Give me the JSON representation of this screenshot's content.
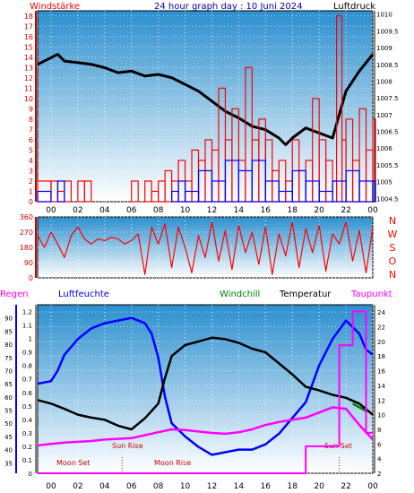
{
  "chart_data": [
    {
      "type": "line",
      "title": "24 hour graph day : 10 Juni 2024",
      "left_label": "Windstärke",
      "right_label": "Luftdruck",
      "left_ticks": [
        "0",
        "1",
        "2",
        "3",
        "4",
        "5",
        "6",
        "7",
        "8",
        "9",
        "10",
        "11",
        "12",
        "13",
        "14",
        "15",
        "16",
        "17",
        "18"
      ],
      "right_ticks": [
        "1004.5",
        "1005",
        "1005.5",
        "1006",
        "1006.5",
        "1007",
        "1007.5",
        "1008",
        "1008.5",
        "1009",
        "1009.5",
        "1010"
      ],
      "x_ticks": [
        "00",
        "02",
        "04",
        "06",
        "08",
        "10",
        "12",
        "14",
        "16",
        "18",
        "20",
        "22",
        "00"
      ],
      "ylim_left": [
        0,
        18.5
      ],
      "ylim_right": [
        1004.4,
        1010.1
      ],
      "series": [
        {
          "name": "Luftdruck",
          "axis": "right",
          "color": "#000000",
          "x": [
            -1,
            0,
            0.5,
            1,
            2,
            3,
            4,
            5,
            6,
            7,
            8,
            9,
            10,
            11,
            12,
            13,
            14,
            15,
            16,
            17,
            17.5,
            18,
            19,
            20,
            21,
            21.5,
            22,
            23,
            24
          ],
          "y": [
            1008.5,
            1008.7,
            1008.8,
            1008.6,
            1008.55,
            1008.5,
            1008.4,
            1008.25,
            1008.3,
            1008.15,
            1008.2,
            1008.1,
            1007.9,
            1007.7,
            1007.4,
            1007.1,
            1006.9,
            1006.65,
            1006.55,
            1006.3,
            1006.1,
            1006.3,
            1006.6,
            1006.45,
            1006.3,
            1007.0,
            1007.7,
            1008.3,
            1008.8
          ]
        },
        {
          "name": "Windstärke",
          "axis": "left",
          "color": "#ff0000",
          "x": [
            -1,
            0,
            0.5,
            1,
            1.5,
            2,
            2.5,
            3,
            4,
            5,
            6,
            6.5,
            7,
            7.5,
            8,
            8.5,
            9,
            9.5,
            10,
            10.5,
            11,
            11.5,
            12,
            12.5,
            13,
            13.5,
            14,
            14.5,
            15,
            15.5,
            16,
            16.5,
            17,
            17.5,
            18,
            18.5,
            19,
            19.5,
            20,
            20.5,
            21,
            21.3,
            21.7,
            22,
            22.5,
            23,
            23.5,
            24
          ],
          "y": [
            2,
            2,
            1,
            2,
            0,
            2,
            2,
            0,
            0,
            0,
            2,
            0,
            2,
            1,
            2,
            3,
            2,
            4,
            2,
            5,
            4,
            6,
            5,
            11,
            6,
            9,
            4,
            13,
            6,
            8,
            6,
            3,
            4,
            2,
            6,
            3,
            4,
            10,
            6,
            4,
            2,
            18,
            6,
            8,
            4,
            9,
            5,
            8
          ]
        },
        {
          "name": "Windrichtung",
          "axis": "left",
          "color": "#0000ff",
          "x": [
            -1,
            0,
            0.5,
            1,
            2,
            6,
            7,
            8,
            9,
            9.5,
            10,
            11,
            12,
            13,
            14,
            15,
            16,
            17,
            18,
            19,
            20,
            21,
            22,
            23,
            24
          ],
          "y": [
            1,
            0,
            2,
            0,
            0,
            0,
            0,
            0,
            1,
            2,
            1,
            3,
            2,
            4,
            3,
            4,
            2,
            1,
            3,
            2,
            1,
            2,
            3,
            2,
            2
          ]
        }
      ]
    },
    {
      "type": "line",
      "title": "",
      "left_ticks": [
        "0",
        "90",
        "180",
        "270",
        "360"
      ],
      "right_ticks": [
        "N",
        "W",
        "S",
        "O",
        "N"
      ],
      "ylim": [
        0,
        360
      ],
      "series": [
        {
          "name": "Windrichtung",
          "color": "#ff0000",
          "x": [
            -1,
            -0.5,
            0,
            0.5,
            1,
            1.5,
            2,
            2.5,
            3,
            3.5,
            4,
            4.5,
            5,
            5.5,
            6,
            6.5,
            7,
            7.5,
            8,
            8.5,
            9,
            9.5,
            10,
            10.5,
            11,
            11.5,
            12,
            12.5,
            13,
            13.5,
            14,
            14.5,
            15,
            15.5,
            16,
            16.5,
            17,
            17.5,
            18,
            18.5,
            19,
            19.5,
            20,
            20.5,
            21,
            21.5,
            22,
            22.5,
            23,
            23.5,
            24
          ],
          "y": [
            250,
            180,
            270,
            200,
            120,
            250,
            300,
            230,
            200,
            230,
            220,
            240,
            230,
            200,
            220,
            260,
            20,
            300,
            200,
            320,
            60,
            300,
            180,
            30,
            250,
            120,
            330,
            100,
            280,
            50,
            310,
            150,
            270,
            80,
            300,
            20,
            260,
            130,
            330,
            60,
            290,
            150,
            310,
            40,
            260,
            200,
            330,
            100,
            280,
            30,
            300
          ]
        }
      ]
    },
    {
      "type": "line",
      "title": "",
      "labels": {
        "regen": "Regen",
        "luftfeuchte": "Luftfeuchte",
        "windchill": "Windchill",
        "temperatur": "Temperatur",
        "taupunkt": "Taupunkt"
      },
      "left_outer_ticks": [
        "35",
        "40",
        "45",
        "50",
        "55",
        "60",
        "65",
        "70",
        "75",
        "80",
        "85",
        "90"
      ],
      "left_inner_ticks": [
        "0",
        "0.1",
        "0.2",
        "0.3",
        "0.4",
        "0.5",
        "0.6",
        "0.7",
        "0.8",
        "0.9",
        "1",
        "1.1",
        "1.2"
      ],
      "right_ticks": [
        "2",
        "4",
        "6",
        "8",
        "10",
        "12",
        "14",
        "16",
        "18",
        "20",
        "22",
        "24"
      ],
      "x_ticks": [
        "00",
        "02",
        "04",
        "06",
        "08",
        "10",
        "12",
        "14",
        "16",
        "18",
        "20",
        "22",
        "00"
      ],
      "ylim_humidity": [
        31,
        95
      ],
      "ylim_temp": [
        2,
        25
      ],
      "annotations": [
        "Moon Set",
        "Sun Rise",
        "Moon Rise",
        "Sun Set"
      ],
      "series": [
        {
          "name": "Luftfeuchte",
          "axis": "humidity",
          "color": "#0000ff",
          "x": [
            -1,
            0,
            0.5,
            1,
            2,
            3,
            4,
            5,
            6,
            7,
            7.5,
            8,
            8.5,
            9,
            10,
            11,
            12,
            13,
            14,
            15,
            16,
            17,
            18,
            19,
            20,
            21,
            22,
            23,
            23.5,
            24
          ],
          "y": [
            65,
            66,
            70,
            76,
            82,
            86,
            88,
            89,
            90,
            88,
            84,
            75,
            60,
            50,
            45,
            41,
            38,
            39,
            40,
            40,
            42,
            46,
            52,
            58,
            72,
            82,
            89,
            84,
            78,
            76
          ]
        },
        {
          "name": "Temperatur",
          "axis": "temp",
          "color": "#000000",
          "x": [
            -1,
            0,
            1,
            2,
            3,
            4,
            5,
            6,
            7,
            8,
            8.5,
            9,
            10,
            11,
            12,
            13,
            14,
            15,
            16,
            17,
            18,
            19,
            20,
            21,
            22,
            23,
            24
          ],
          "y": [
            12,
            11.5,
            10.8,
            10,
            9.6,
            9.3,
            8.5,
            8,
            9.5,
            11.5,
            15,
            18,
            19.5,
            20,
            20.5,
            20.3,
            19.8,
            19,
            18.5,
            17,
            15.5,
            13.8,
            13.3,
            12.7,
            12.3,
            11.5,
            10
          ]
        },
        {
          "name": "Taupunkt",
          "axis": "temp",
          "color": "#ff00ff",
          "x": [
            -1,
            0,
            1,
            2,
            3,
            4,
            5,
            6,
            7,
            8,
            9,
            10,
            11,
            12,
            13,
            14,
            15,
            16,
            17,
            18,
            19,
            20,
            21,
            22,
            23,
            24
          ],
          "y": [
            5.8,
            6,
            6.2,
            6.3,
            6.4,
            6.6,
            6.7,
            6.8,
            7.2,
            7.6,
            8,
            7.9,
            7.7,
            7.5,
            7.4,
            7.6,
            8,
            8.6,
            9,
            9.3,
            9.6,
            10.3,
            11,
            10.8,
            8.6,
            6.6
          ]
        },
        {
          "name": "Windchill",
          "axis": "temp",
          "color": "#008000",
          "x": [
            22.5,
            23,
            23.5
          ],
          "y": [
            11.5,
            11,
            10.5
          ]
        },
        {
          "name": "Regen",
          "axis": "rain",
          "color": "#ff00ff",
          "x": [
            -1,
            19,
            19,
            21.5,
            21.5,
            22.5,
            22.5,
            23.5,
            23.5,
            24
          ],
          "y": [
            0,
            0,
            0.2,
            0.2,
            0.95,
            0.95,
            1.2,
            1.2,
            0.3,
            0.3
          ]
        }
      ]
    }
  ]
}
